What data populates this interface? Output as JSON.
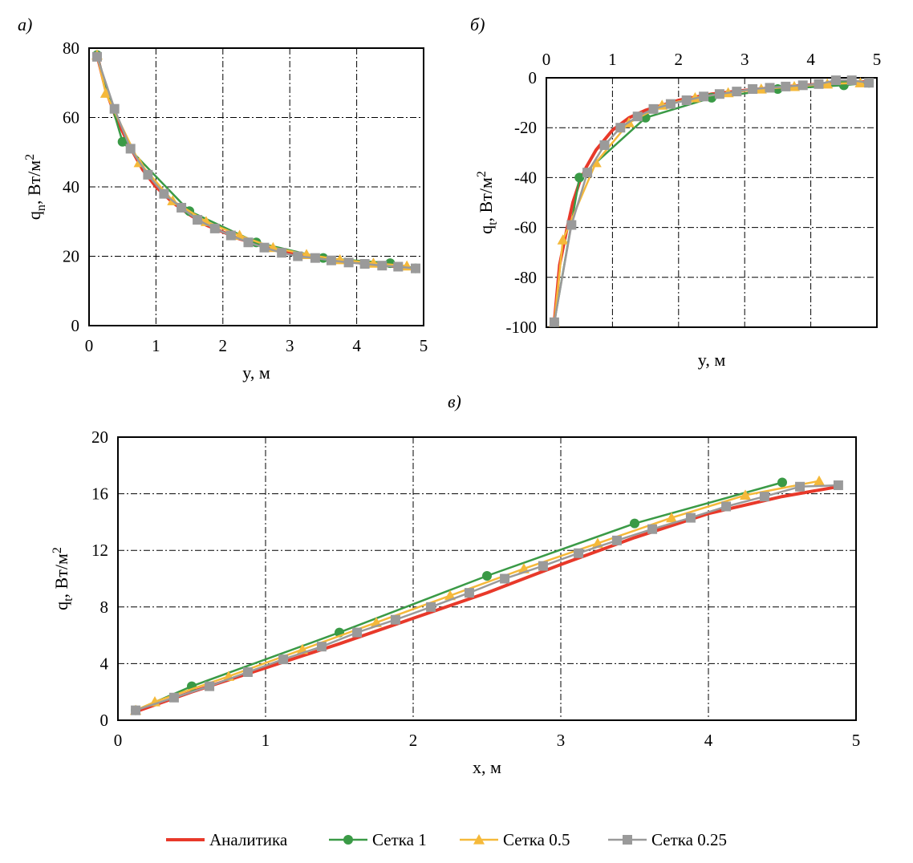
{
  "legend": {
    "entries": [
      {
        "name": "Аналитика",
        "color": "#e8392a",
        "marker": "none"
      },
      {
        "name": "Сетка 1",
        "color": "#3a9a46",
        "marker": "circle"
      },
      {
        "name": "Сетка 0.5",
        "color": "#f5b93a",
        "marker": "triangle"
      },
      {
        "name": "Сетка 0.25",
        "color": "#9a9a9a",
        "marker": "square"
      }
    ]
  },
  "chart_data": [
    {
      "panel_label": "а)",
      "type": "line",
      "xlabel": "y, м",
      "ylabel": {
        "base": "q",
        "sub": "n",
        "rest": ", Вт/м",
        "sup": "2"
      },
      "xlim": [
        0,
        5
      ],
      "ylim": [
        0,
        80
      ],
      "xticks": [
        "0",
        "1",
        "2",
        "3",
        "4",
        "5"
      ],
      "yticks": [
        "0",
        "20",
        "40",
        "60",
        "80"
      ],
      "x_axis_position": "bottom",
      "grid": true,
      "series": [
        {
          "name": "Аналитика",
          "color": "#e8392a",
          "marker": "none",
          "x": [
            0.12,
            0.25,
            0.4,
            0.6,
            0.8,
            1.0,
            1.25,
            1.5,
            1.75,
            2.0,
            2.25,
            2.5,
            2.75,
            3.0,
            3.25,
            3.5,
            3.75,
            4.0,
            4.25,
            4.5,
            4.75,
            4.88
          ],
          "y": [
            78,
            68,
            60,
            52,
            45,
            40,
            35.5,
            32,
            29,
            27,
            25,
            23.5,
            22,
            21,
            20,
            19.2,
            18.7,
            18.2,
            17.6,
            17.2,
            16.7,
            16.5
          ]
        },
        {
          "name": "Сетка 1",
          "color": "#3a9a46",
          "marker": "circle",
          "x": [
            0.12,
            0.5,
            1.5,
            2.5,
            3.5,
            4.5,
            4.88
          ],
          "y": [
            78,
            53,
            33,
            24,
            19.5,
            18,
            16.5
          ]
        },
        {
          "name": "Сетка 0.5",
          "color": "#f5b93a",
          "marker": "triangle",
          "x": [
            0.12,
            0.25,
            0.75,
            1.25,
            1.75,
            2.25,
            2.75,
            3.25,
            3.75,
            4.25,
            4.75
          ],
          "y": [
            78,
            67,
            47,
            36,
            30,
            26,
            22.5,
            20.5,
            19,
            18,
            17.2
          ]
        },
        {
          "name": "Сетка 0.25",
          "color": "#9a9a9a",
          "marker": "square",
          "x": [
            0.12,
            0.38,
            0.62,
            0.88,
            1.12,
            1.38,
            1.62,
            1.88,
            2.12,
            2.38,
            2.62,
            2.88,
            3.12,
            3.38,
            3.62,
            3.88,
            4.12,
            4.38,
            4.62,
            4.88
          ],
          "y": [
            77.5,
            62.5,
            51,
            43.5,
            38,
            34,
            30.5,
            28,
            26,
            24,
            22.5,
            21,
            20,
            19.5,
            18.8,
            18.2,
            17.8,
            17.3,
            17,
            16.5
          ]
        }
      ]
    },
    {
      "panel_label": "б)",
      "type": "line",
      "xlabel": "y, м",
      "ylabel": {
        "base": "q",
        "sub": "t",
        "rest": ", Вт/м",
        "sup": "2"
      },
      "xlim": [
        0,
        5
      ],
      "ylim": [
        -100,
        0
      ],
      "xticks": [
        "0",
        "1",
        "2",
        "3",
        "4",
        "5"
      ],
      "yticks": [
        "-100",
        "-80",
        "-60",
        "-40",
        "-20",
        "0"
      ],
      "x_axis_position": "top",
      "grid": true,
      "series": [
        {
          "name": "Аналитика",
          "color": "#e8392a",
          "marker": "none",
          "x": [
            0.12,
            0.2,
            0.3,
            0.4,
            0.5,
            0.6,
            0.75,
            1.0,
            1.25,
            1.5,
            2.0,
            2.5,
            3.0,
            3.5,
            4.0,
            4.5,
            4.88
          ],
          "y": [
            -98,
            -75,
            -62,
            -50,
            -42,
            -36,
            -29,
            -21,
            -16,
            -13,
            -9,
            -6.5,
            -5,
            -3.8,
            -2.8,
            -2,
            -1.5
          ]
        },
        {
          "name": "Сетка 1",
          "color": "#3a9a46",
          "marker": "circle",
          "x": [
            0.12,
            0.5,
            1.5,
            2.5,
            3.5,
            4.5,
            4.88
          ],
          "y": [
            -98,
            -40,
            -16,
            -8,
            -4.5,
            -3,
            -2
          ]
        },
        {
          "name": "Сетка 0.5",
          "color": "#f5b93a",
          "marker": "triangle",
          "x": [
            0.12,
            0.25,
            0.75,
            1.25,
            1.75,
            2.25,
            2.75,
            3.25,
            3.75,
            4.25,
            4.75
          ],
          "y": [
            -98,
            -65,
            -34,
            -18,
            -11,
            -8,
            -6,
            -4.5,
            -3.5,
            -2.5,
            -2
          ]
        },
        {
          "name": "Сетка 0.25",
          "color": "#9a9a9a",
          "marker": "square",
          "x": [
            0.12,
            0.38,
            0.62,
            0.88,
            1.12,
            1.38,
            1.62,
            1.88,
            2.12,
            2.38,
            2.62,
            2.88,
            3.12,
            3.38,
            3.62,
            3.88,
            4.12,
            4.38,
            4.62,
            4.88
          ],
          "y": [
            -98,
            -59,
            -38,
            -27,
            -20,
            -15.5,
            -12.5,
            -10.5,
            -9,
            -7.5,
            -6.5,
            -5.5,
            -4.5,
            -4,
            -3.5,
            -3,
            -2.5,
            -1,
            -1,
            -2
          ]
        }
      ]
    },
    {
      "panel_label": "в)",
      "type": "line",
      "xlabel": "x, м",
      "ylabel": {
        "base": "q",
        "sub": "t",
        "rest": ", Вт/м",
        "sup": "2"
      },
      "xlim": [
        0,
        5
      ],
      "ylim": [
        0,
        20
      ],
      "xticks": [
        "0",
        "1",
        "2",
        "3",
        "4",
        "5"
      ],
      "yticks": [
        "0",
        "4",
        "8",
        "12",
        "16",
        "20"
      ],
      "x_axis_position": "bottom",
      "grid": true,
      "series": [
        {
          "name": "Аналитика",
          "color": "#e8392a",
          "marker": "none",
          "x": [
            0.12,
            0.5,
            1.0,
            1.5,
            2.0,
            2.5,
            3.0,
            3.5,
            4.0,
            4.5,
            4.88
          ],
          "y": [
            0.6,
            2.0,
            3.7,
            5.4,
            7.2,
            9.0,
            11.0,
            12.9,
            14.6,
            15.8,
            16.5
          ]
        },
        {
          "name": "Сетка 1",
          "color": "#3a9a46",
          "marker": "circle",
          "x": [
            0.12,
            0.5,
            1.5,
            2.5,
            3.5,
            4.5
          ],
          "y": [
            0.7,
            2.4,
            6.2,
            10.2,
            13.9,
            16.8
          ]
        },
        {
          "name": "Сетка 0.5",
          "color": "#f5b93a",
          "marker": "triangle",
          "x": [
            0.12,
            0.25,
            0.75,
            1.25,
            1.75,
            2.25,
            2.75,
            3.25,
            3.75,
            4.25,
            4.75
          ],
          "y": [
            0.7,
            1.3,
            3.1,
            5.0,
            6.9,
            8.8,
            10.7,
            12.5,
            14.3,
            15.9,
            16.9
          ]
        },
        {
          "name": "Сетка 0.25",
          "color": "#9a9a9a",
          "marker": "square",
          "x": [
            0.12,
            0.38,
            0.62,
            0.88,
            1.12,
            1.38,
            1.62,
            1.88,
            2.12,
            2.38,
            2.62,
            2.88,
            3.12,
            3.38,
            3.62,
            3.88,
            4.12,
            4.38,
            4.62,
            4.88
          ],
          "y": [
            0.7,
            1.6,
            2.4,
            3.4,
            4.3,
            5.2,
            6.2,
            7.1,
            8.0,
            9.0,
            10.0,
            10.9,
            11.8,
            12.7,
            13.5,
            14.3,
            15.1,
            15.8,
            16.5,
            16.6
          ]
        }
      ]
    }
  ]
}
